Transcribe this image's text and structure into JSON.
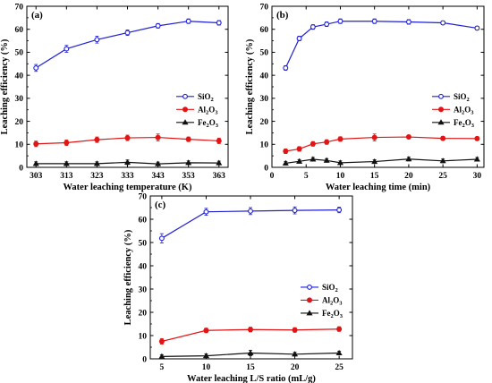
{
  "figure": {
    "series_styles": [
      {
        "color": "#1f1fd6",
        "marker": "open-circle"
      },
      {
        "color": "#e01515",
        "marker": "filled-circle"
      },
      {
        "color": "#111111",
        "marker": "filled-triangle"
      }
    ],
    "legend_location": "right-middle"
  },
  "chart_data": [
    {
      "type": "line",
      "panel": "(a)",
      "xlabel": "Water leaching temperature (K)",
      "ylabel": "Leaching efficiency (%)",
      "x": [
        303,
        313,
        323,
        333,
        343,
        353,
        363
      ],
      "xticks": [
        303,
        313,
        323,
        333,
        343,
        353,
        363
      ],
      "xlim": [
        300,
        366
      ],
      "ylim": [
        0,
        70
      ],
      "yticks": [
        0,
        10,
        20,
        30,
        40,
        50,
        60,
        70
      ],
      "series": [
        {
          "name": "SiO2",
          "name_parts": [
            "SiO",
            "2",
            ""
          ],
          "values": [
            43.2,
            51.5,
            55.5,
            58.5,
            61.5,
            63.5,
            62.8
          ],
          "errors": [
            1.5,
            1.5,
            1.5,
            1.2,
            1.0,
            1.0,
            1.0
          ]
        },
        {
          "name": "Al2O3",
          "name_parts": [
            "Al",
            "2",
            "O",
            "3"
          ],
          "values": [
            10.2,
            10.7,
            12.0,
            12.8,
            13.0,
            12.2,
            11.5
          ],
          "errors": [
            1.2,
            1.2,
            1.2,
            1.2,
            1.5,
            1.0,
            1.2
          ]
        },
        {
          "name": "Fe2O3",
          "name_parts": [
            "Fe",
            "2",
            "O",
            "3"
          ],
          "values": [
            1.6,
            1.6,
            1.6,
            2.2,
            1.5,
            2.0,
            1.9
          ],
          "errors": [
            0.8,
            0.8,
            0.8,
            1.0,
            0.8,
            0.8,
            0.8
          ]
        }
      ]
    },
    {
      "type": "line",
      "panel": "(b)",
      "xlabel": "Water leaching time (min)",
      "ylabel": "Leaching efficiency (%)",
      "x": [
        2,
        4,
        6,
        8,
        10,
        15,
        20,
        25,
        30
      ],
      "xticks": [
        0,
        5,
        10,
        15,
        20,
        25,
        30
      ],
      "xlim": [
        0,
        31
      ],
      "ylim": [
        0,
        70
      ],
      "yticks": [
        0,
        10,
        20,
        30,
        40,
        50,
        60,
        70
      ],
      "series": [
        {
          "name": "SiO2",
          "name_parts": [
            "SiO",
            "2",
            ""
          ],
          "values": [
            43.2,
            56.0,
            61.0,
            62.2,
            63.5,
            63.5,
            63.2,
            62.8,
            60.5
          ],
          "errors": [
            1.0,
            1.0,
            1.0,
            1.0,
            1.0,
            1.0,
            1.0,
            0.8,
            0.8
          ]
        },
        {
          "name": "Al2O3",
          "name_parts": [
            "Al",
            "2",
            "O",
            "3"
          ],
          "values": [
            7.0,
            8.0,
            10.2,
            11.0,
            12.3,
            13.0,
            13.2,
            12.6,
            12.5
          ],
          "errors": [
            1.0,
            1.0,
            1.0,
            1.0,
            1.0,
            1.5,
            0.8,
            0.8,
            0.8
          ]
        },
        {
          "name": "Fe2O3",
          "name_parts": [
            "Fe",
            "2",
            "O",
            "3"
          ],
          "values": [
            1.8,
            2.6,
            3.5,
            3.0,
            2.0,
            2.5,
            3.6,
            2.8,
            3.5
          ],
          "errors": [
            0.8,
            0.8,
            0.8,
            0.8,
            0.8,
            0.8,
            0.8,
            0.8,
            0.8
          ]
        }
      ]
    },
    {
      "type": "line",
      "panel": "(c)",
      "xlabel": "Water leaching L/S ratio (mL/g)",
      "ylabel": "Leaching efficiency (%)",
      "x": [
        5,
        10,
        15,
        20,
        25
      ],
      "xticks": [
        5,
        10,
        15,
        20,
        25
      ],
      "xlim": [
        3.7,
        26.5
      ],
      "ylim": [
        0,
        70
      ],
      "yticks": [
        0,
        10,
        20,
        30,
        40,
        50,
        60,
        70
      ],
      "series": [
        {
          "name": "SiO2",
          "name_parts": [
            "SiO",
            "2",
            ""
          ],
          "values": [
            51.8,
            63.2,
            63.5,
            63.8,
            64.0
          ],
          "errors": [
            2.0,
            1.5,
            1.5,
            1.5,
            1.2
          ]
        },
        {
          "name": "Al2O3",
          "name_parts": [
            "Al",
            "2",
            "O",
            "3"
          ],
          "values": [
            7.5,
            12.2,
            12.6,
            12.4,
            12.8
          ],
          "errors": [
            1.2,
            1.0,
            1.0,
            1.0,
            1.0
          ]
        },
        {
          "name": "Fe2O3",
          "name_parts": [
            "Fe",
            "2",
            "O",
            "3"
          ],
          "values": [
            1.0,
            1.3,
            2.5,
            2.0,
            2.5
          ],
          "errors": [
            0.8,
            0.8,
            1.2,
            0.8,
            0.8
          ]
        }
      ]
    }
  ]
}
